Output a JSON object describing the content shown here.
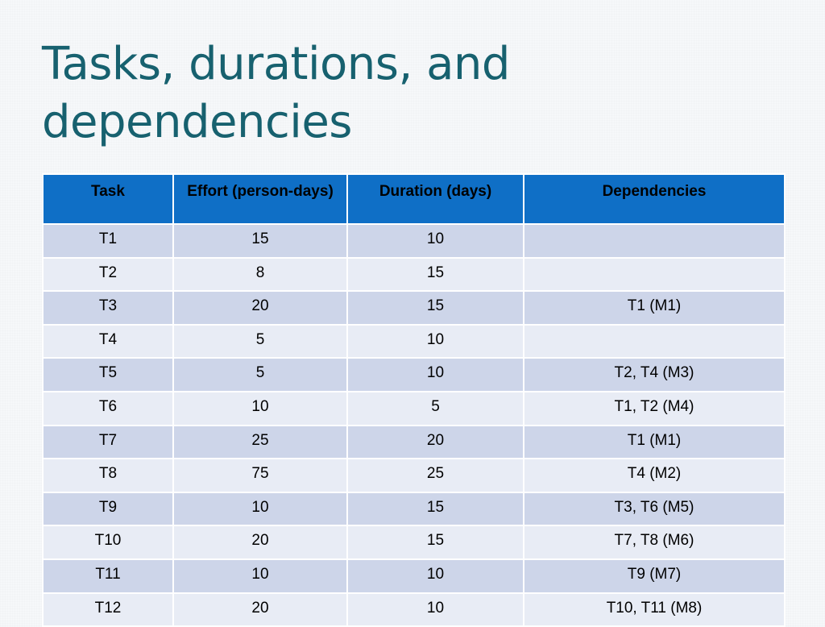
{
  "slide": {
    "title": "Tasks, durations, and dependencies"
  },
  "table": {
    "headers": [
      "Task",
      "Effort (person-days)",
      "Duration (days)",
      "Dependencies"
    ],
    "rows": [
      [
        "T1",
        "15",
        "10",
        ""
      ],
      [
        "T2",
        "8",
        "15",
        ""
      ],
      [
        "T3",
        "20",
        "15",
        "T1 (M1)"
      ],
      [
        "T4",
        "5",
        "10",
        ""
      ],
      [
        "T5",
        "5",
        "10",
        "T2, T4 (M3)"
      ],
      [
        "T6",
        "10",
        "5",
        "T1, T2 (M4)"
      ],
      [
        "T7",
        "25",
        "20",
        "T1 (M1)"
      ],
      [
        "T8",
        "75",
        "25",
        "T4 (M2)"
      ],
      [
        "T9",
        "10",
        "15",
        "T3, T6 (M5)"
      ],
      [
        "T10",
        "20",
        "15",
        "T7, T8 (M6)"
      ],
      [
        "T11",
        "10",
        "10",
        "T9 (M7)"
      ],
      [
        "T12",
        "20",
        "10",
        "T10, T11 (M8)"
      ]
    ]
  },
  "colors": {
    "title": "#17616f",
    "header_fill": "#0f6fc6",
    "row_fill_dark": "#cdd5e9",
    "row_fill_light": "#e8ecf5"
  }
}
